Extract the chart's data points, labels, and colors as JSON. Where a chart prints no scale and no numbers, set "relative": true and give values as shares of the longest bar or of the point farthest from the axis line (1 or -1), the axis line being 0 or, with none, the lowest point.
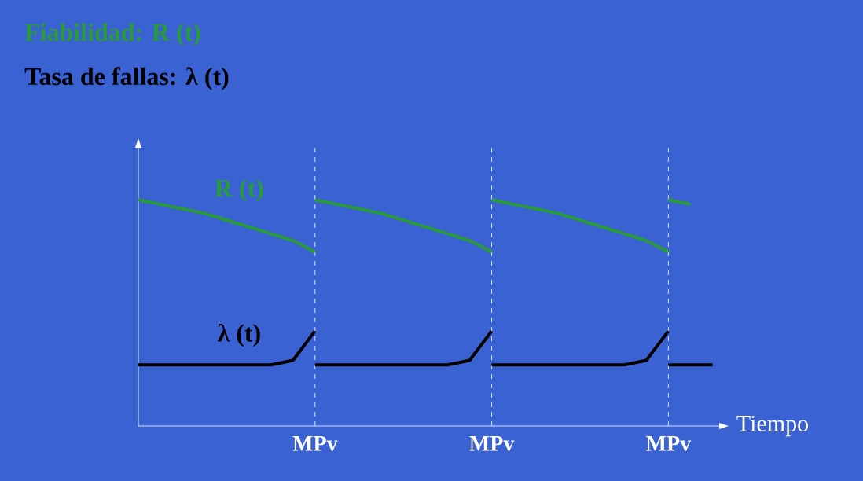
{
  "chart_data": {
    "type": "line",
    "relative": true,
    "title": "Fiabilidad: R (t)",
    "subtitle": "Tasa de fallas: λ (t)",
    "xlabel": "Tiempo",
    "marker": "none",
    "line_style": "solid",
    "grid": "x",
    "legend": false,
    "categories": [
      null,
      null,
      null,
      null,
      null,
      null,
      null,
      null,
      "MPv",
      null,
      null,
      null,
      null,
      null,
      null,
      null,
      "MPv",
      null,
      null,
      null,
      null,
      null,
      null,
      null,
      "MPv",
      null,
      null
    ],
    "series": [
      {
        "name": "R (t)",
        "color": "#2a9a3a",
        "values": [
          1.0,
          0.98,
          0.96,
          0.94,
          0.91,
          0.88,
          0.85,
          0.82,
          0.77,
          null,
          null,
          null,
          null,
          null,
          null,
          null,
          null,
          null,
          null,
          null,
          null,
          null,
          null,
          null,
          null,
          null,
          null
        ]
      },
      {
        "color": "#2a9a3a",
        "values": [
          null,
          null,
          null,
          null,
          null,
          null,
          null,
          null,
          1.0,
          0.98,
          0.96,
          0.94,
          0.91,
          0.88,
          0.85,
          0.82,
          0.77,
          null,
          null,
          null,
          null,
          null,
          null,
          null,
          null,
          null,
          null
        ]
      },
      {
        "color": "#2a9a3a",
        "values": [
          null,
          null,
          null,
          null,
          null,
          null,
          null,
          null,
          null,
          null,
          null,
          null,
          null,
          null,
          null,
          null,
          1.0,
          0.98,
          0.96,
          0.94,
          0.91,
          0.88,
          0.85,
          0.82,
          0.77,
          null,
          null
        ]
      },
      {
        "color": "#2a9a3a",
        "values": [
          null,
          null,
          null,
          null,
          null,
          null,
          null,
          null,
          null,
          null,
          null,
          null,
          null,
          null,
          null,
          null,
          null,
          null,
          null,
          null,
          null,
          null,
          null,
          null,
          1.0,
          0.98,
          null
        ]
      },
      {
        "name": "λ (t)",
        "color": "#000000",
        "values": [
          0.27,
          0.27,
          0.27,
          0.27,
          0.27,
          0.27,
          0.27,
          0.29,
          0.42,
          null,
          null,
          null,
          null,
          null,
          null,
          null,
          null,
          null,
          null,
          null,
          null,
          null,
          null,
          null,
          null,
          null,
          null
        ]
      },
      {
        "color": "#000000",
        "values": [
          null,
          null,
          null,
          null,
          null,
          null,
          null,
          null,
          0.27,
          0.27,
          0.27,
          0.27,
          0.27,
          0.27,
          0.27,
          0.29,
          0.42,
          null,
          null,
          null,
          null,
          null,
          null,
          null,
          null,
          null,
          null
        ]
      },
      {
        "color": "#000000",
        "values": [
          null,
          null,
          null,
          null,
          null,
          null,
          null,
          null,
          null,
          null,
          null,
          null,
          null,
          null,
          null,
          null,
          0.27,
          0.27,
          0.27,
          0.27,
          0.27,
          0.27,
          0.27,
          0.29,
          0.42,
          null,
          null
        ]
      },
      {
        "color": "#000000",
        "values": [
          null,
          null,
          null,
          null,
          null,
          null,
          null,
          null,
          null,
          null,
          null,
          null,
          null,
          null,
          null,
          null,
          null,
          null,
          null,
          null,
          null,
          null,
          null,
          null,
          0.27,
          0.27,
          0.27
        ]
      }
    ]
  }
}
